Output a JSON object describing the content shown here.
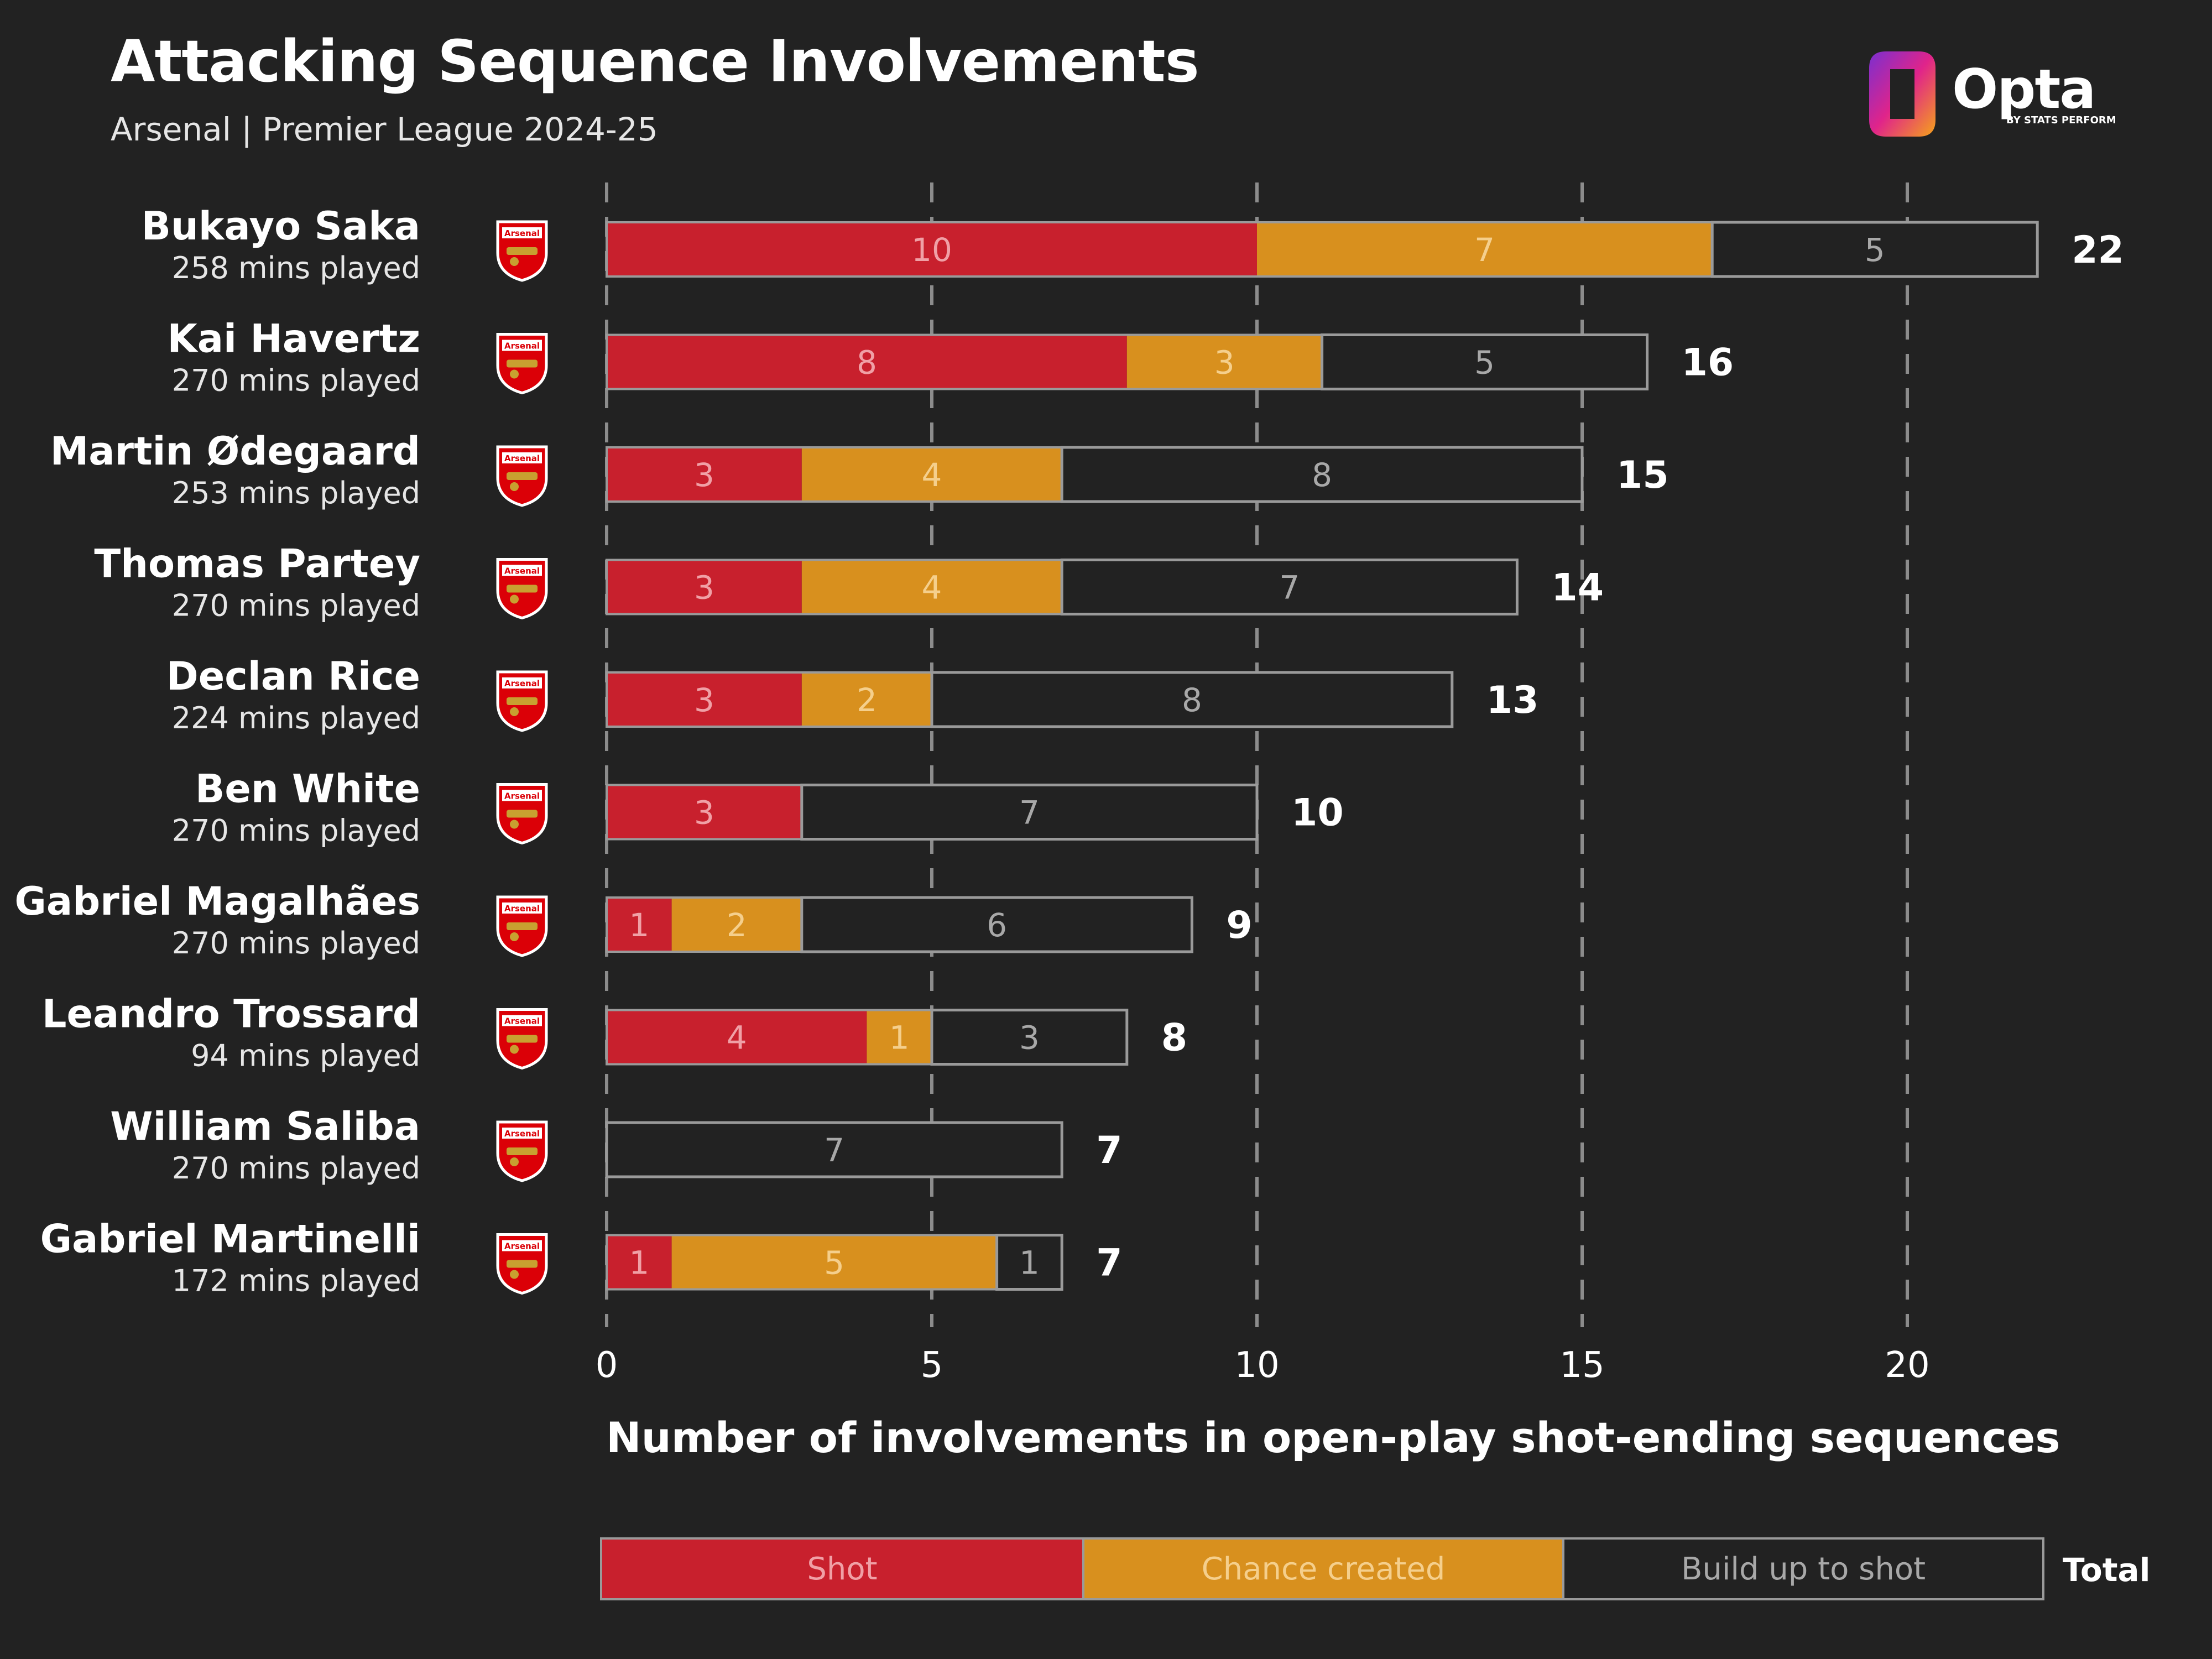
{
  "header": {
    "title": "Attacking Sequence Involvements",
    "subtitle": "Arsenal | Premier League 2024-25"
  },
  "logo": {
    "word": "Opta",
    "tagline": "BY STATS PERFORM"
  },
  "badge": {
    "text": "Arsenal",
    "icon": "arsenal-crest-icon"
  },
  "colors": {
    "background": "#222222",
    "shot": "#C8202D",
    "chance": "#D8901E",
    "buildup_border": "#9A9A9A",
    "grid": "#8C8C8C"
  },
  "legend": {
    "items": [
      {
        "key": "shot",
        "label": "Shot",
        "color": "#C8202D",
        "text_color": "#F0A0A6"
      },
      {
        "key": "chance",
        "label": "Chance created",
        "color": "#D8901E",
        "text_color": "#F5CF8C"
      },
      {
        "key": "buildup",
        "label": "Build up to shot",
        "color": "#222222",
        "text_color": "#A8A8A8"
      }
    ],
    "total_label": "Total"
  },
  "chart_data": {
    "type": "bar",
    "orientation": "horizontal",
    "stacked": true,
    "title": "Attacking Sequence Involvements",
    "subtitle": "Arsenal | Premier League 2024-25",
    "xlabel": "Number of involvements in open-play shot-ending sequences",
    "xlim": [
      0,
      22
    ],
    "xticks": [
      0,
      5,
      10,
      15,
      20
    ],
    "grid": "vertical dashed",
    "legend_position": "bottom",
    "categories": [
      "Bukayo Saka",
      "Kai Havertz",
      "Martin Ødegaard",
      "Thomas Partey",
      "Declan Rice",
      "Ben White",
      "Gabriel Magalhães",
      "Leandro Trossard",
      "William Saliba",
      "Gabriel Martinelli"
    ],
    "minutes_labels": [
      "258 mins played",
      "270 mins played",
      "253 mins played",
      "270 mins played",
      "224 mins played",
      "270 mins played",
      "270 mins played",
      "94 mins played",
      "270 mins played",
      "172 mins played"
    ],
    "series": [
      {
        "name": "Shot",
        "values": [
          10,
          8,
          3,
          3,
          3,
          3,
          1,
          4,
          0,
          1
        ]
      },
      {
        "name": "Chance created",
        "values": [
          7,
          3,
          4,
          4,
          2,
          0,
          2,
          1,
          0,
          5
        ]
      },
      {
        "name": "Build up to shot",
        "values": [
          5,
          5,
          8,
          7,
          8,
          7,
          6,
          3,
          7,
          1
        ]
      }
    ],
    "totals": [
      22,
      16,
      15,
      14,
      13,
      10,
      9,
      8,
      7,
      7
    ]
  }
}
